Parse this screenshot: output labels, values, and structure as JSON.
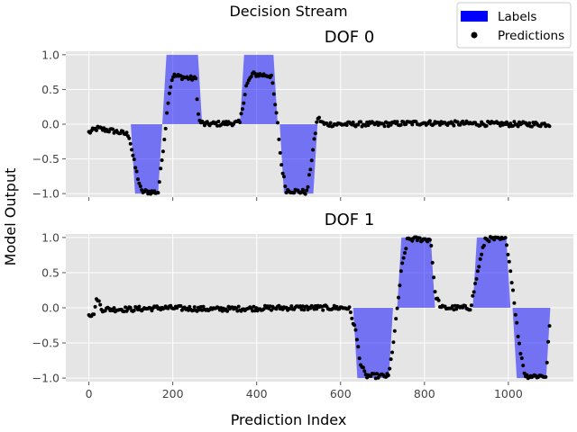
{
  "figure": {
    "suptitle": "Decision Stream",
    "xlabel": "Prediction Index",
    "ylabel": "Model Output"
  },
  "legend": {
    "placement": "top-right",
    "labels_label": "Labels",
    "predictions_label": "Predictions"
  },
  "colors": {
    "label_fill": "#0000ff",
    "label_fill_alpha": 0.5,
    "prediction_point": "#000000",
    "axes_background": "#e5e5e5",
    "grid": "#ffffff"
  },
  "chart_data": [
    {
      "type": "area",
      "title": "DOF 0",
      "xlim": [
        -55,
        1155
      ],
      "ylim": [
        -1.05,
        1.05
      ],
      "xticks": [
        0,
        200,
        400,
        600,
        800,
        1000
      ],
      "yticks": [
        -1.0,
        -0.5,
        0.0,
        0.5,
        1.0
      ],
      "ytick_labels": [
        "−1.0",
        "−0.5",
        "0.0",
        "0.5",
        "1.0"
      ],
      "grid": true,
      "series": [
        {
          "name": "Labels",
          "kind": "filled_step",
          "segments": [
            {
              "start": 100,
              "end": 175,
              "value": -1.0,
              "ramp": 10
            },
            {
              "start": 175,
              "end": 270,
              "value": 1.0,
              "ramp": 10
            },
            {
              "start": 360,
              "end": 450,
              "value": 1.0,
              "ramp": 10
            },
            {
              "start": 455,
              "end": 545,
              "value": -1.0,
              "ramp": 10
            }
          ]
        },
        {
          "name": "Predictions",
          "kind": "scatter",
          "x_range": [
            0,
            1100
          ],
          "profile": [
            [
              0,
              -0.12
            ],
            [
              20,
              -0.06
            ],
            [
              60,
              -0.1
            ],
            [
              95,
              -0.15
            ],
            [
              110,
              -0.6
            ],
            [
              125,
              -0.97
            ],
            [
              165,
              -0.98
            ],
            [
              182,
              -0.1
            ],
            [
              190,
              0.4
            ],
            [
              200,
              0.7
            ],
            [
              255,
              0.65
            ],
            [
              262,
              0.05
            ],
            [
              275,
              0.0
            ],
            [
              360,
              0.02
            ],
            [
              375,
              0.55
            ],
            [
              390,
              0.72
            ],
            [
              435,
              0.7
            ],
            [
              450,
              0.0
            ],
            [
              458,
              -0.55
            ],
            [
              470,
              -0.95
            ],
            [
              520,
              -0.98
            ],
            [
              545,
              0.1
            ],
            [
              560,
              0.0
            ],
            [
              700,
              0.0
            ],
            [
              790,
              0.02
            ],
            [
              1000,
              0.0
            ],
            [
              1100,
              0.0
            ]
          ]
        }
      ]
    },
    {
      "type": "area",
      "title": "DOF 1",
      "xlim": [
        -55,
        1155
      ],
      "ylim": [
        -1.05,
        1.05
      ],
      "xticks": [
        0,
        200,
        400,
        600,
        800,
        1000
      ],
      "xtick_labels": [
        "0",
        "200",
        "400",
        "600",
        "800",
        "1000"
      ],
      "yticks": [
        -1.0,
        -0.5,
        0.0,
        0.5,
        1.0
      ],
      "ytick_labels": [
        "−1.0",
        "−0.5",
        "0.0",
        "0.5",
        "1.0"
      ],
      "grid": true,
      "series": [
        {
          "name": "Labels",
          "kind": "filled_step",
          "segments": [
            {
              "start": 630,
              "end": 725,
              "value": -1.0,
              "ramp": 10
            },
            {
              "start": 735,
              "end": 825,
              "value": 1.0,
              "ramp": 10
            },
            {
              "start": 915,
              "end": 1005,
              "value": 1.0,
              "ramp": 10
            },
            {
              "start": 1010,
              "end": 1100,
              "value": -1.0,
              "ramp": 10
            }
          ]
        },
        {
          "name": "Predictions",
          "kind": "scatter",
          "x_range": [
            0,
            1100
          ],
          "profile": [
            [
              0,
              -0.08
            ],
            [
              10,
              -0.12
            ],
            [
              20,
              0.15
            ],
            [
              30,
              -0.02
            ],
            [
              100,
              -0.02
            ],
            [
              180,
              0.0
            ],
            [
              300,
              -0.02
            ],
            [
              460,
              0.0
            ],
            [
              620,
              0.0
            ],
            [
              635,
              -0.3
            ],
            [
              648,
              -0.8
            ],
            [
              660,
              -0.97
            ],
            [
              715,
              -0.97
            ],
            [
              730,
              -0.3
            ],
            [
              745,
              0.55
            ],
            [
              760,
              0.98
            ],
            [
              815,
              0.97
            ],
            [
              825,
              0.2
            ],
            [
              840,
              0.0
            ],
            [
              910,
              0.0
            ],
            [
              930,
              0.6
            ],
            [
              945,
              0.98
            ],
            [
              995,
              0.97
            ],
            [
              1010,
              0.3
            ],
            [
              1025,
              -0.5
            ],
            [
              1040,
              -0.97
            ],
            [
              1090,
              -0.97
            ],
            [
              1100,
              -0.05
            ]
          ]
        }
      ]
    }
  ]
}
